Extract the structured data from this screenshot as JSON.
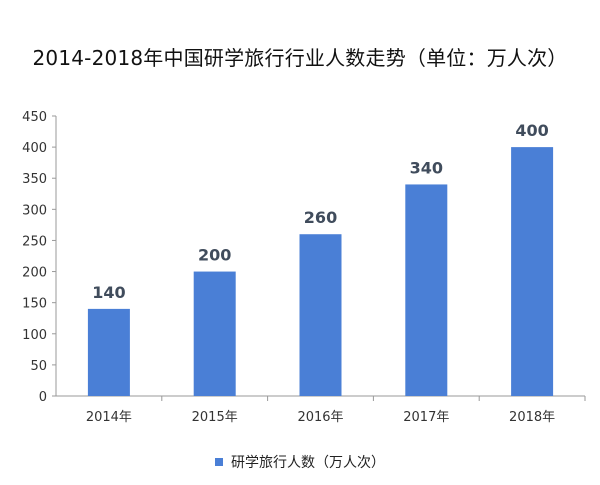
{
  "chart_data": {
    "type": "bar",
    "title": "2014-2018年中国研学旅行行业人数走势（单位：万人次）",
    "categories": [
      "2014年",
      "2015年",
      "2016年",
      "2017年",
      "2018年"
    ],
    "series": [
      {
        "name": "研学旅行人数（万人次）",
        "values": [
          140,
          200,
          260,
          340,
          400
        ]
      }
    ],
    "ylim": [
      0,
      450
    ],
    "yticks": [
      0,
      50,
      100,
      150,
      200,
      250,
      300,
      350,
      400,
      450
    ],
    "grid": false,
    "legend_position": "bottom",
    "colors": {
      "bar": "#4a7fd6",
      "label": "#404c5c",
      "axis": "#999999"
    }
  }
}
